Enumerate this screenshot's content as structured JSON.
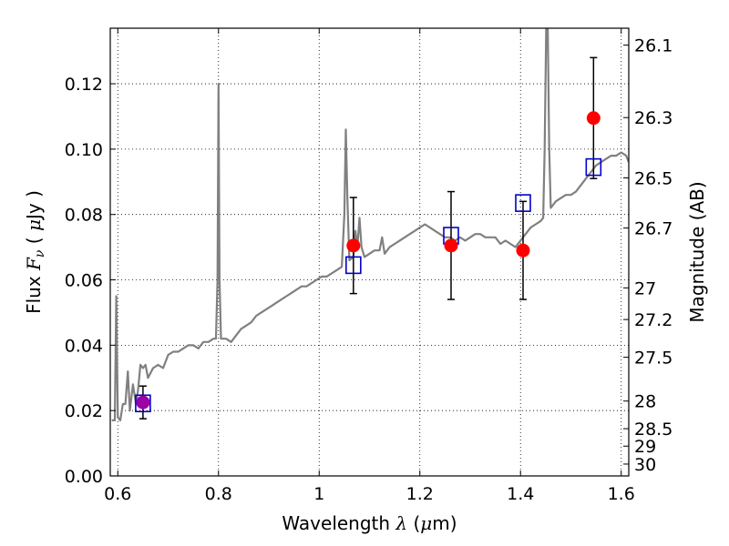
{
  "chart_data": {
    "type": "scatter",
    "xlabel": {
      "prefix": "Wavelength  ",
      "symbol": "λ",
      "suffix": " (",
      "mu": "μ",
      "unit": "m)"
    },
    "ylabel": {
      "prefix": "Flux  ",
      "symbol": "F",
      "sub": "ν",
      "mid": "  ( ",
      "mu": "μ",
      "unit": "Jy )"
    },
    "y2label": "Magnitude (AB)",
    "xlim": [
      0.585,
      1.615
    ],
    "ylim": [
      0.0,
      0.137
    ],
    "grid": true,
    "x_ticks": [
      {
        "v": 0.6,
        "label": "0.6"
      },
      {
        "v": 0.8,
        "label": "0.8"
      },
      {
        "v": 1.0,
        "label": "1"
      },
      {
        "v": 1.2,
        "label": "1.2"
      },
      {
        "v": 1.4,
        "label": "1.4"
      },
      {
        "v": 1.6,
        "label": "1.6"
      }
    ],
    "y_ticks": [
      {
        "v": 0.0,
        "label": "0.00"
      },
      {
        "v": 0.02,
        "label": "0.02"
      },
      {
        "v": 0.04,
        "label": "0.04"
      },
      {
        "v": 0.06,
        "label": "0.06"
      },
      {
        "v": 0.08,
        "label": "0.08"
      },
      {
        "v": 0.1,
        "label": "0.10"
      },
      {
        "v": 0.12,
        "label": "0.12"
      }
    ],
    "mag_ticks": [
      {
        "mag": 26.1,
        "label": "26.1"
      },
      {
        "mag": 26.3,
        "label": "26.3"
      },
      {
        "mag": 26.5,
        "label": "26.5"
      },
      {
        "mag": 26.7,
        "label": "26.7"
      },
      {
        "mag": 27.0,
        "label": "27"
      },
      {
        "mag": 27.2,
        "label": "27.2"
      },
      {
        "mag": 27.5,
        "label": "27.5"
      },
      {
        "mag": 28.0,
        "label": "28"
      },
      {
        "mag": 28.5,
        "label": "28.5"
      },
      {
        "mag": 29.0,
        "label": "29"
      },
      {
        "mag": 30.0,
        "label": "30"
      }
    ],
    "series": [
      {
        "kind": "spectrum",
        "color": "#808080",
        "points": [
          [
            0.588,
            0.017
          ],
          [
            0.594,
            0.017
          ],
          [
            0.597,
            0.055
          ],
          [
            0.6,
            0.018
          ],
          [
            0.605,
            0.017
          ],
          [
            0.61,
            0.022
          ],
          [
            0.615,
            0.022
          ],
          [
            0.62,
            0.032
          ],
          [
            0.624,
            0.02
          ],
          [
            0.63,
            0.028
          ],
          [
            0.636,
            0.022
          ],
          [
            0.64,
            0.026
          ],
          [
            0.645,
            0.034
          ],
          [
            0.65,
            0.033
          ],
          [
            0.655,
            0.034
          ],
          [
            0.66,
            0.03
          ],
          [
            0.67,
            0.033
          ],
          [
            0.68,
            0.034
          ],
          [
            0.69,
            0.033
          ],
          [
            0.7,
            0.037
          ],
          [
            0.71,
            0.038
          ],
          [
            0.72,
            0.038
          ],
          [
            0.73,
            0.039
          ],
          [
            0.74,
            0.04
          ],
          [
            0.75,
            0.04
          ],
          [
            0.76,
            0.039
          ],
          [
            0.77,
            0.041
          ],
          [
            0.78,
            0.041
          ],
          [
            0.79,
            0.042
          ],
          [
            0.795,
            0.042
          ],
          [
            0.798,
            0.06
          ],
          [
            0.8,
            0.12
          ],
          [
            0.802,
            0.06
          ],
          [
            0.805,
            0.042
          ],
          [
            0.815,
            0.042
          ],
          [
            0.825,
            0.041
          ],
          [
            0.835,
            0.043
          ],
          [
            0.845,
            0.045
          ],
          [
            0.855,
            0.046
          ],
          [
            0.865,
            0.047
          ],
          [
            0.875,
            0.049
          ],
          [
            0.885,
            0.05
          ],
          [
            0.895,
            0.051
          ],
          [
            0.905,
            0.052
          ],
          [
            0.915,
            0.053
          ],
          [
            0.925,
            0.054
          ],
          [
            0.935,
            0.055
          ],
          [
            0.945,
            0.056
          ],
          [
            0.955,
            0.057
          ],
          [
            0.965,
            0.058
          ],
          [
            0.975,
            0.058
          ],
          [
            0.985,
            0.059
          ],
          [
            0.995,
            0.06
          ],
          [
            1.005,
            0.061
          ],
          [
            1.015,
            0.061
          ],
          [
            1.025,
            0.062
          ],
          [
            1.035,
            0.063
          ],
          [
            1.045,
            0.064
          ],
          [
            1.05,
            0.08
          ],
          [
            1.053,
            0.106
          ],
          [
            1.056,
            0.085
          ],
          [
            1.06,
            0.066
          ],
          [
            1.068,
            0.067
          ],
          [
            1.072,
            0.075
          ],
          [
            1.076,
            0.07
          ],
          [
            1.08,
            0.079
          ],
          [
            1.084,
            0.07
          ],
          [
            1.09,
            0.067
          ],
          [
            1.1,
            0.068
          ],
          [
            1.11,
            0.069
          ],
          [
            1.12,
            0.069
          ],
          [
            1.125,
            0.073
          ],
          [
            1.13,
            0.068
          ],
          [
            1.14,
            0.07
          ],
          [
            1.15,
            0.071
          ],
          [
            1.16,
            0.072
          ],
          [
            1.17,
            0.073
          ],
          [
            1.18,
            0.074
          ],
          [
            1.19,
            0.075
          ],
          [
            1.2,
            0.076
          ],
          [
            1.21,
            0.077
          ],
          [
            1.22,
            0.076
          ],
          [
            1.23,
            0.075
          ],
          [
            1.24,
            0.074
          ],
          [
            1.25,
            0.073
          ],
          [
            1.26,
            0.073
          ],
          [
            1.27,
            0.072
          ],
          [
            1.28,
            0.073
          ],
          [
            1.29,
            0.072
          ],
          [
            1.3,
            0.073
          ],
          [
            1.31,
            0.074
          ],
          [
            1.32,
            0.074
          ],
          [
            1.33,
            0.073
          ],
          [
            1.34,
            0.073
          ],
          [
            1.35,
            0.073
          ],
          [
            1.36,
            0.071
          ],
          [
            1.37,
            0.072
          ],
          [
            1.38,
            0.071
          ],
          [
            1.39,
            0.07
          ],
          [
            1.4,
            0.072
          ],
          [
            1.41,
            0.074
          ],
          [
            1.42,
            0.076
          ],
          [
            1.43,
            0.077
          ],
          [
            1.44,
            0.078
          ],
          [
            1.445,
            0.079
          ],
          [
            1.448,
            0.1
          ],
          [
            1.451,
            0.137
          ],
          [
            1.454,
            0.137
          ],
          [
            1.457,
            0.1
          ],
          [
            1.46,
            0.082
          ],
          [
            1.47,
            0.084
          ],
          [
            1.48,
            0.085
          ],
          [
            1.49,
            0.086
          ],
          [
            1.5,
            0.086
          ],
          [
            1.51,
            0.087
          ],
          [
            1.52,
            0.089
          ],
          [
            1.53,
            0.091
          ],
          [
            1.54,
            0.093
          ],
          [
            1.55,
            0.095
          ],
          [
            1.56,
            0.096
          ],
          [
            1.57,
            0.097
          ],
          [
            1.58,
            0.098
          ],
          [
            1.59,
            0.098
          ],
          [
            1.6,
            0.099
          ],
          [
            1.61,
            0.098
          ],
          [
            1.615,
            0.096
          ]
        ]
      },
      {
        "kind": "model_photometry",
        "marker": "open-square",
        "color": "#0000cc",
        "points": [
          [
            0.65,
            0.0222
          ],
          [
            1.068,
            0.0645
          ],
          [
            1.262,
            0.0735
          ],
          [
            1.405,
            0.0835
          ],
          [
            1.545,
            0.0945
          ]
        ]
      },
      {
        "kind": "observed_photometry",
        "marker": "filled-circle",
        "color": "#ff0000",
        "points": [
          {
            "x": 0.65,
            "y": 0.0225,
            "err": 0.005
          },
          {
            "x": 1.068,
            "y": 0.0705,
            "err": 0.0147
          },
          {
            "x": 1.262,
            "y": 0.0705,
            "err": 0.0165
          },
          {
            "x": 1.405,
            "y": 0.069,
            "err": 0.015
          },
          {
            "x": 1.545,
            "y": 0.1095,
            "err": 0.0185
          }
        ]
      }
    ],
    "overlap_color": "#9b00a8"
  }
}
